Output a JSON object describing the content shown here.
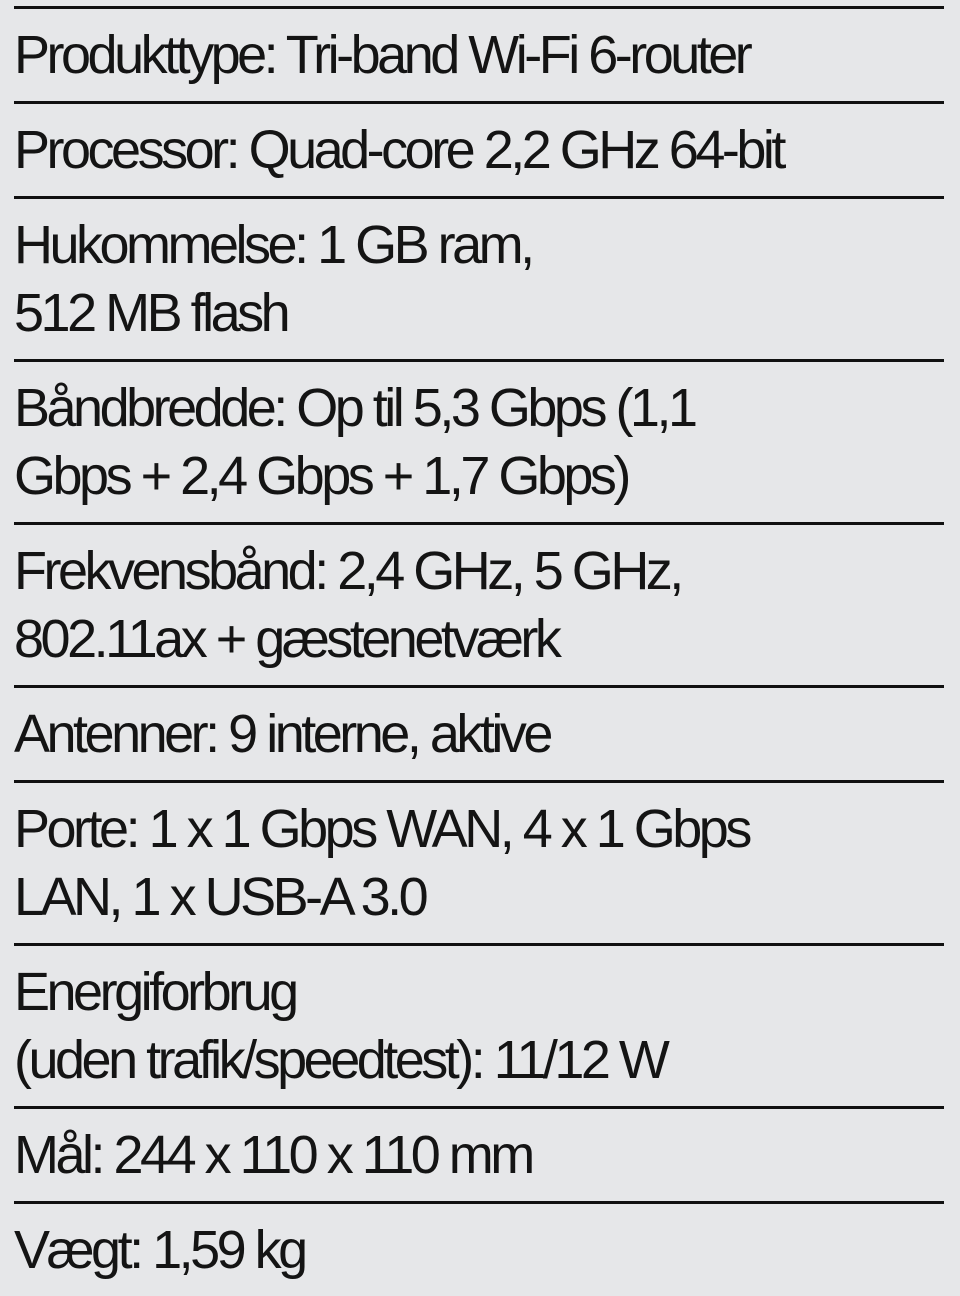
{
  "specs": [
    {
      "lines": [
        "Produkttype: Tri-band Wi-Fi 6-router"
      ]
    },
    {
      "lines": [
        "Processor: Quad-core 2,2 GHz 64-bit"
      ]
    },
    {
      "lines": [
        "Hukommelse: 1 GB ram,",
        "512 MB flash"
      ]
    },
    {
      "lines": [
        "Båndbredde: Op til 5,3 Gbps (1,1",
        "Gbps + 2,4 Gbps + 1,7 Gbps)"
      ]
    },
    {
      "lines": [
        "Frekvensbånd: 2,4 GHz, 5 GHz,",
        "802.11ax + gæstenetværk"
      ]
    },
    {
      "lines": [
        "Antenner: 9 interne, aktive"
      ]
    },
    {
      "lines": [
        "Porte: 1 x 1 Gbps WAN, 4 x 1 Gbps",
        "LAN, 1 x USB-A 3.0"
      ]
    },
    {
      "lines": [
        "Energiforbrug",
        "(uden trafik/speedtest): 11/12 W"
      ]
    },
    {
      "lines": [
        "Mål: 244 x 110 x 110 mm"
      ]
    },
    {
      "lines": [
        "Vægt: 1,59 kg"
      ]
    }
  ]
}
